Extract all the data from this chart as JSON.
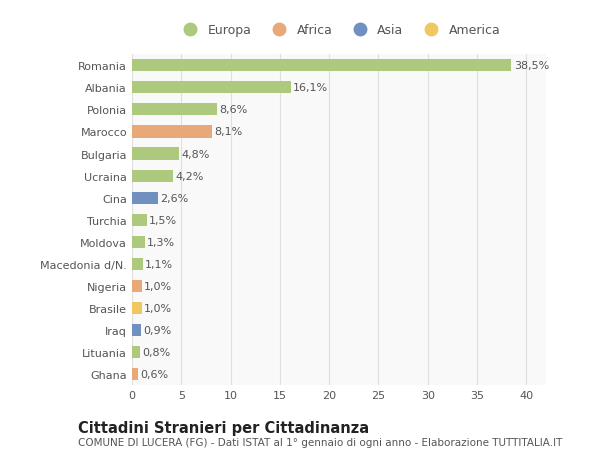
{
  "countries": [
    "Romania",
    "Albania",
    "Polonia",
    "Marocco",
    "Bulgaria",
    "Ucraina",
    "Cina",
    "Turchia",
    "Moldova",
    "Macedonia d/N.",
    "Nigeria",
    "Brasile",
    "Iraq",
    "Lituania",
    "Ghana"
  ],
  "values": [
    38.5,
    16.1,
    8.6,
    8.1,
    4.8,
    4.2,
    2.6,
    1.5,
    1.3,
    1.1,
    1.0,
    1.0,
    0.9,
    0.8,
    0.6
  ],
  "labels": [
    "38,5%",
    "16,1%",
    "8,6%",
    "8,1%",
    "4,8%",
    "4,2%",
    "2,6%",
    "1,5%",
    "1,3%",
    "1,1%",
    "1,0%",
    "1,0%",
    "0,9%",
    "0,8%",
    "0,6%"
  ],
  "continent": [
    "Europa",
    "Europa",
    "Europa",
    "Africa",
    "Europa",
    "Europa",
    "Asia",
    "Europa",
    "Europa",
    "Europa",
    "Africa",
    "America",
    "Asia",
    "Europa",
    "Africa"
  ],
  "colors": {
    "Europa": "#adc97e",
    "Africa": "#e8a878",
    "Asia": "#7090c0",
    "America": "#f0c860"
  },
  "xlim": [
    0,
    42
  ],
  "xticks": [
    0,
    5,
    10,
    15,
    20,
    25,
    30,
    35,
    40
  ],
  "title": "Cittadini Stranieri per Cittadinanza",
  "subtitle": "COMUNE DI LUCERA (FG) - Dati ISTAT al 1° gennaio di ogni anno - Elaborazione TUTTITALIA.IT",
  "bg_color": "#ffffff",
  "plot_bg_color": "#f9f9f9",
  "grid_color": "#e0e0e0",
  "bar_height": 0.55,
  "label_fontsize": 8.0,
  "tick_fontsize": 8.0,
  "title_fontsize": 10.5,
  "subtitle_fontsize": 7.5,
  "legend_entries": [
    "Europa",
    "Africa",
    "Asia",
    "America"
  ]
}
